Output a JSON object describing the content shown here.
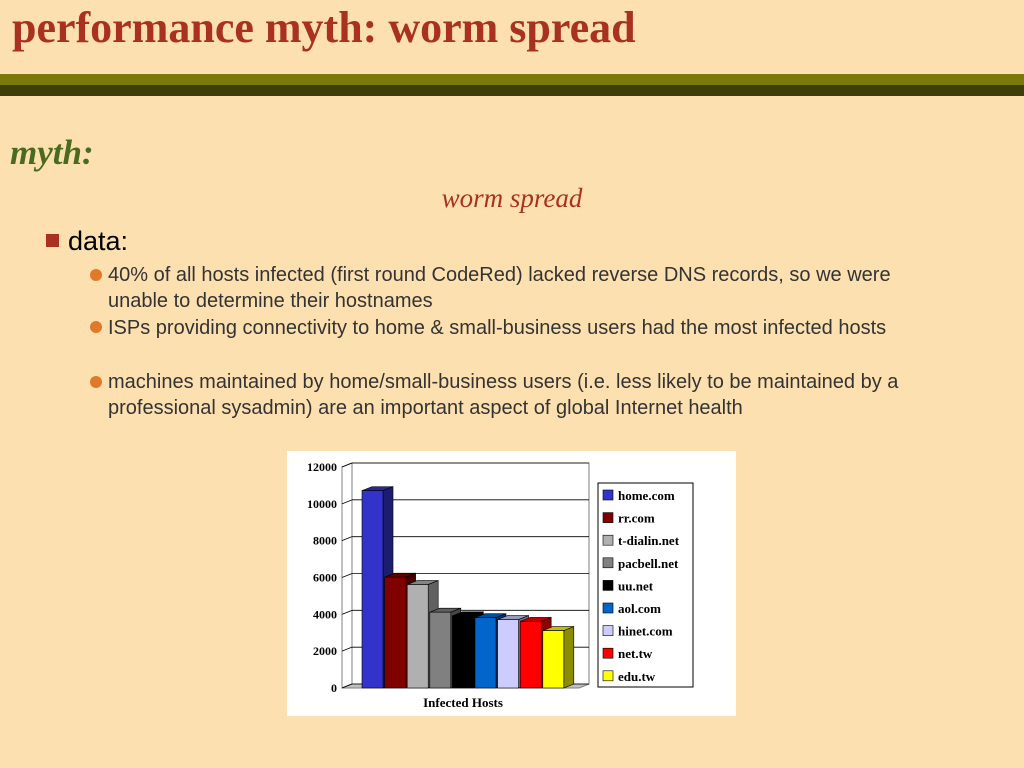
{
  "slide": {
    "title": "performance myth: worm spread",
    "myth_heading": "myth:",
    "subtitle": "worm spread",
    "bullet_data": "data:",
    "points": [
      "40% of all hosts infected (first round CodeRed) lacked reverse DNS records, so we were unable to determine their hostnames",
      "ISPs providing connectivity to home & small-business users had the most infected hosts",
      "machines maintained by home/small-business users (i.e. less likely to be maintained by a professional sysadmin) are an important aspect of global Internet health"
    ]
  },
  "colors": {
    "background": "#fde0b0",
    "title": "#a8321e",
    "heading": "#4a6a1e",
    "bar_top": "#7a7a0a",
    "bar_bottom": "#3e3e0a",
    "bullet_square": "#a8321e",
    "bullet_dot": "#e07a2a"
  },
  "chart_data": {
    "type": "bar",
    "xlabel": "Infected Hosts",
    "ylabel": "",
    "ylim": [
      0,
      12000
    ],
    "yticks": [
      0,
      2000,
      4000,
      6000,
      8000,
      10000,
      12000
    ],
    "grid": true,
    "legend_position": "right",
    "series": [
      {
        "name": "home.com",
        "values": [
          10500
        ],
        "color": "#3333cc"
      },
      {
        "name": "rr.com",
        "values": [
          5800
        ],
        "color": "#800000"
      },
      {
        "name": "t-dialin.net",
        "values": [
          5400
        ],
        "color": "#b0b0b0"
      },
      {
        "name": "pacbell.net",
        "values": [
          3900
        ],
        "color": "#808080"
      },
      {
        "name": "uu.net",
        "values": [
          3700
        ],
        "color": "#000000"
      },
      {
        "name": "aol.com",
        "values": [
          3600
        ],
        "color": "#0066cc"
      },
      {
        "name": "hinet.com",
        "values": [
          3500
        ],
        "color": "#ccccff"
      },
      {
        "name": "net.tw",
        "values": [
          3400
        ],
        "color": "#ff0000"
      },
      {
        "name": "edu.tw",
        "values": [
          2900
        ],
        "color": "#ffff00"
      }
    ]
  }
}
